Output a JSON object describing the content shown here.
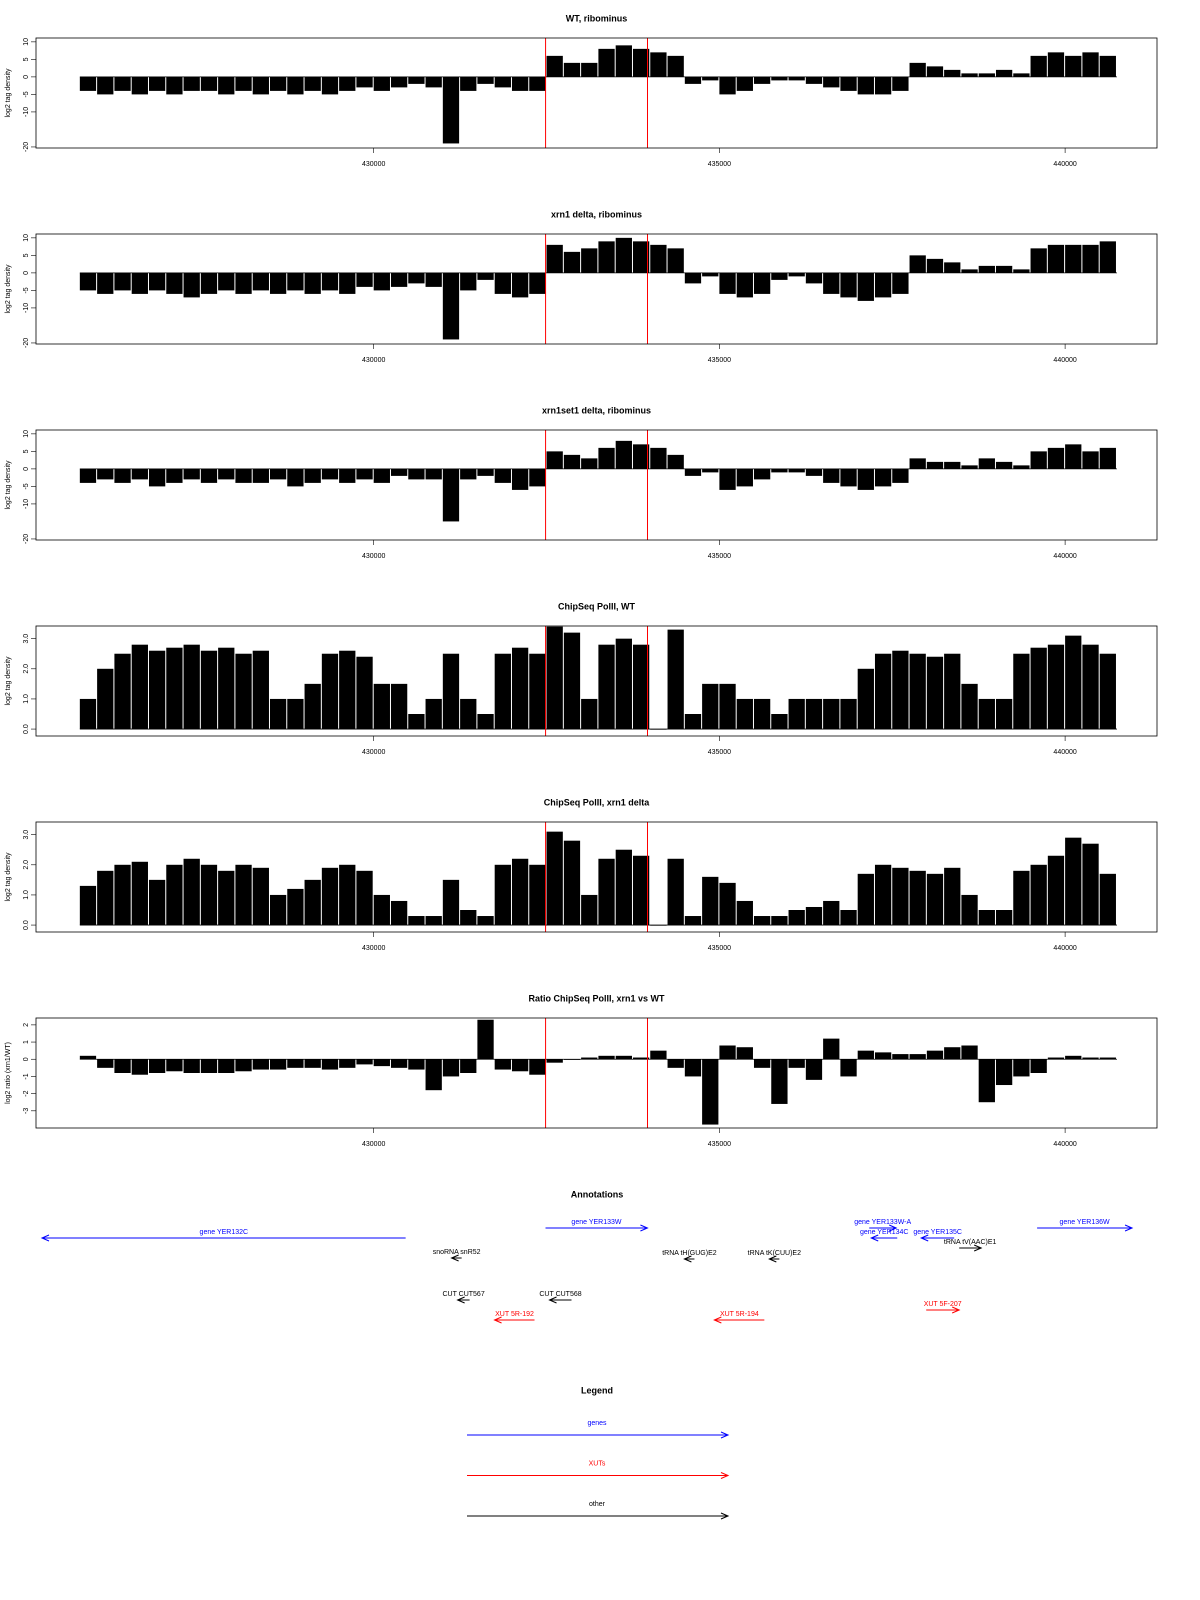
{
  "chart_data": [
    {
      "type": "bar",
      "title": "WT, ribominus",
      "y_label": "log2 tag density",
      "color": "#000000",
      "markers": [
        432486,
        433960
      ],
      "marker_color": "#ff0000",
      "x": [
        425750,
        426000,
        426250,
        426500,
        426750,
        427000,
        427250,
        427500,
        427750,
        428000,
        428250,
        428500,
        428750,
        429000,
        429250,
        429500,
        429750,
        430000,
        430250,
        430500,
        430750,
        431000,
        431250,
        431500,
        431750,
        432000,
        432250,
        432500,
        432750,
        433000,
        433250,
        433500,
        433750,
        434000,
        434250,
        434500,
        434750,
        435000,
        435250,
        435500,
        435750,
        436000,
        436250,
        436500,
        436750,
        437000,
        437250,
        437500,
        437750,
        438000,
        438250,
        438500,
        438750,
        439000,
        439250,
        439500,
        439750,
        440000,
        440250,
        440500
      ],
      "values": [
        -4,
        -5,
        -4,
        -5,
        -4,
        -5,
        -4,
        -4,
        -5,
        -4,
        -5,
        -4,
        -5,
        -4,
        -5,
        -4,
        -3,
        -4,
        -3,
        -2,
        -3,
        -19,
        -4,
        -2,
        -3,
        -4,
        -4,
        6,
        4,
        4,
        8,
        9,
        8,
        7,
        6,
        -2,
        -1,
        -5,
        -4,
        -2,
        -1,
        -1,
        -2,
        -3,
        -4,
        -5,
        -5,
        -4,
        4,
        3,
        2,
        1,
        1,
        2,
        1,
        6,
        7,
        6,
        7,
        6
      ],
      "xlim": [
        425116,
        441329
      ],
      "xticks": [
        430000,
        435000,
        440000
      ],
      "ylim": [
        -20.3,
        11.1
      ],
      "yticks": [
        -20,
        -10,
        -5,
        0,
        5,
        10
      ]
    },
    {
      "type": "bar",
      "title": "xrn1 delta, ribominus",
      "y_label": "log2 tag density",
      "color": "#000000",
      "markers": [
        432486,
        433960
      ],
      "marker_color": "#ff0000",
      "x": [
        425750,
        426000,
        426250,
        426500,
        426750,
        427000,
        427250,
        427500,
        427750,
        428000,
        428250,
        428500,
        428750,
        429000,
        429250,
        429500,
        429750,
        430000,
        430250,
        430500,
        430750,
        431000,
        431250,
        431500,
        431750,
        432000,
        432250,
        432500,
        432750,
        433000,
        433250,
        433500,
        433750,
        434000,
        434250,
        434500,
        434750,
        435000,
        435250,
        435500,
        435750,
        436000,
        436250,
        436500,
        436750,
        437000,
        437250,
        437500,
        437750,
        438000,
        438250,
        438500,
        438750,
        439000,
        439250,
        439500,
        439750,
        440000,
        440250,
        440500
      ],
      "values": [
        -5,
        -6,
        -5,
        -6,
        -5,
        -6,
        -7,
        -6,
        -5,
        -6,
        -5,
        -6,
        -5,
        -6,
        -5,
        -6,
        -4,
        -5,
        -4,
        -3,
        -4,
        -19,
        -5,
        -2,
        -6,
        -7,
        -6,
        8,
        6,
        7,
        9,
        10,
        9,
        8,
        7,
        -3,
        -1,
        -6,
        -7,
        -6,
        -2,
        -1,
        -3,
        -6,
        -7,
        -8,
        -7,
        -6,
        5,
        4,
        3,
        1,
        2,
        2,
        1,
        7,
        8,
        8,
        8,
        9
      ],
      "xlim": [
        425116,
        441329
      ],
      "xticks": [
        430000,
        435000,
        440000
      ],
      "ylim": [
        -20.3,
        11.1
      ],
      "yticks": [
        -20,
        -10,
        -5,
        0,
        5,
        10
      ]
    },
    {
      "type": "bar",
      "title": "xrn1set1 delta, ribominus",
      "y_label": "log2 tag density",
      "color": "#000000",
      "markers": [
        432486,
        433960
      ],
      "marker_color": "#ff0000",
      "x": [
        425750,
        426000,
        426250,
        426500,
        426750,
        427000,
        427250,
        427500,
        427750,
        428000,
        428250,
        428500,
        428750,
        429000,
        429250,
        429500,
        429750,
        430000,
        430250,
        430500,
        430750,
        431000,
        431250,
        431500,
        431750,
        432000,
        432250,
        432500,
        432750,
        433000,
        433250,
        433500,
        433750,
        434000,
        434250,
        434500,
        434750,
        435000,
        435250,
        435500,
        435750,
        436000,
        436250,
        436500,
        436750,
        437000,
        437250,
        437500,
        437750,
        438000,
        438250,
        438500,
        438750,
        439000,
        439250,
        439500,
        439750,
        440000,
        440250,
        440500
      ],
      "values": [
        -4,
        -3,
        -4,
        -3,
        -5,
        -4,
        -3,
        -4,
        -3,
        -4,
        -4,
        -3,
        -5,
        -4,
        -3,
        -4,
        -3,
        -4,
        -2,
        -3,
        -3,
        -15,
        -3,
        -2,
        -4,
        -6,
        -5,
        5,
        4,
        3,
        6,
        8,
        7,
        6,
        4,
        -2,
        -1,
        -6,
        -5,
        -3,
        -1,
        -1,
        -2,
        -4,
        -5,
        -6,
        -5,
        -4,
        3,
        2,
        2,
        1,
        3,
        2,
        1,
        5,
        6,
        7,
        5,
        6
      ],
      "xlim": [
        425116,
        441329
      ],
      "xticks": [
        430000,
        435000,
        440000
      ],
      "ylim": [
        -20.3,
        11.1
      ],
      "yticks": [
        -20,
        -10,
        -5,
        0,
        5,
        10
      ]
    },
    {
      "type": "bar",
      "title": "ChipSeq PolII, WT",
      "y_label": "log2 tag density",
      "color": "#000000",
      "markers": [
        432486,
        433960
      ],
      "marker_color": "#ff0000",
      "x": [
        425750,
        426000,
        426250,
        426500,
        426750,
        427000,
        427250,
        427500,
        427750,
        428000,
        428250,
        428500,
        428750,
        429000,
        429250,
        429500,
        429750,
        430000,
        430250,
        430500,
        430750,
        431000,
        431250,
        431500,
        431750,
        432000,
        432250,
        432500,
        432750,
        433000,
        433250,
        433500,
        433750,
        434000,
        434250,
        434500,
        434750,
        435000,
        435250,
        435500,
        435750,
        436000,
        436250,
        436500,
        436750,
        437000,
        437250,
        437500,
        437750,
        438000,
        438250,
        438500,
        438750,
        439000,
        439250,
        439500,
        439750,
        440000,
        440250,
        440500
      ],
      "values": [
        1.0,
        2.0,
        2.5,
        2.8,
        2.6,
        2.7,
        2.8,
        2.6,
        2.7,
        2.5,
        2.6,
        1.0,
        1.0,
        1.5,
        2.5,
        2.6,
        2.4,
        1.5,
        1.5,
        0.5,
        1.0,
        2.5,
        1.0,
        0.5,
        2.5,
        2.7,
        2.5,
        3.4,
        3.2,
        1.0,
        2.8,
        3.0,
        2.8,
        0,
        3.3,
        0.5,
        1.5,
        1.5,
        1.0,
        1.0,
        0.5,
        1.0,
        1.0,
        1.0,
        1.0,
        2.0,
        2.5,
        2.6,
        2.5,
        2.4,
        2.5,
        1.5,
        1.0,
        1.0,
        2.5,
        2.7,
        2.8,
        3.1,
        2.8,
        2.5
      ],
      "xlim": [
        425116,
        441329
      ],
      "xticks": [
        430000,
        435000,
        440000
      ],
      "ylim": [
        -0.23,
        3.42
      ],
      "yticks": [
        {
          "value": 0,
          "label": "0.0"
        },
        {
          "value": 1,
          "label": "1.0"
        },
        {
          "value": 2,
          "label": "2.0"
        },
        {
          "value": 3,
          "label": "3.0"
        }
      ]
    },
    {
      "type": "bar",
      "title": "ChipSeq PolII, xrn1 delta",
      "y_label": "log2 tag density",
      "color": "#000000",
      "markers": [
        432486,
        433960
      ],
      "marker_color": "#ff0000",
      "x": [
        425750,
        426000,
        426250,
        426500,
        426750,
        427000,
        427250,
        427500,
        427750,
        428000,
        428250,
        428500,
        428750,
        429000,
        429250,
        429500,
        429750,
        430000,
        430250,
        430500,
        430750,
        431000,
        431250,
        431500,
        431750,
        432000,
        432250,
        432500,
        432750,
        433000,
        433250,
        433500,
        433750,
        434000,
        434250,
        434500,
        434750,
        435000,
        435250,
        435500,
        435750,
        436000,
        436250,
        436500,
        436750,
        437000,
        437250,
        437500,
        437750,
        438000,
        438250,
        438500,
        438750,
        439000,
        439250,
        439500,
        439750,
        440000,
        440250,
        440500
      ],
      "values": [
        1.3,
        1.8,
        2.0,
        2.1,
        1.5,
        2.0,
        2.2,
        2.0,
        1.8,
        2.0,
        1.9,
        1.0,
        1.2,
        1.5,
        1.9,
        2.0,
        1.8,
        1.0,
        0.8,
        0.3,
        0.3,
        1.5,
        0.5,
        0.3,
        2.0,
        2.2,
        2.0,
        3.1,
        2.8,
        1.0,
        2.2,
        2.5,
        2.3,
        0,
        2.2,
        0.3,
        1.6,
        1.4,
        0.8,
        0.3,
        0.3,
        0.5,
        0.6,
        0.8,
        0.5,
        1.7,
        2.0,
        1.9,
        1.8,
        1.7,
        1.9,
        1.0,
        0.5,
        0.5,
        1.8,
        2.0,
        2.3,
        2.9,
        2.7,
        1.7
      ],
      "xlim": [
        425116,
        441329
      ],
      "xticks": [
        430000,
        435000,
        440000
      ],
      "ylim": [
        -0.23,
        3.42
      ],
      "yticks": [
        {
          "value": 0,
          "label": "0.0"
        },
        {
          "value": 1,
          "label": "1.0"
        },
        {
          "value": 2,
          "label": "2.0"
        },
        {
          "value": 3,
          "label": "3.0"
        }
      ]
    },
    {
      "type": "bar",
      "title": "Ratio ChipSeq PolII, xrn1 vs WT",
      "y_label": "log2 ratio (xrn1/WT)",
      "color": "#000000",
      "markers": [
        432486,
        433960
      ],
      "marker_color": "#ff0000",
      "x": [
        425750,
        426000,
        426250,
        426500,
        426750,
        427000,
        427250,
        427500,
        427750,
        428000,
        428250,
        428500,
        428750,
        429000,
        429250,
        429500,
        429750,
        430000,
        430250,
        430500,
        430750,
        431000,
        431250,
        431500,
        431750,
        432000,
        432250,
        432500,
        432750,
        433000,
        433250,
        433500,
        433750,
        434000,
        434250,
        434500,
        434750,
        435000,
        435250,
        435500,
        435750,
        436000,
        436250,
        436500,
        436750,
        437000,
        437250,
        437500,
        437750,
        438000,
        438250,
        438500,
        438750,
        439000,
        439250,
        439500,
        439750,
        440000,
        440250,
        440500
      ],
      "values": [
        0.2,
        -0.5,
        -0.8,
        -0.9,
        -0.8,
        -0.7,
        -0.8,
        -0.8,
        -0.8,
        -0.7,
        -0.6,
        -0.6,
        -0.5,
        -0.5,
        -0.6,
        -0.5,
        -0.3,
        -0.4,
        -0.5,
        -0.6,
        -1.8,
        -1.0,
        -0.8,
        2.3,
        -0.6,
        -0.7,
        -0.9,
        -0.2,
        0,
        0.1,
        0.2,
        0.2,
        0.1,
        0.5,
        -0.5,
        -1.0,
        -3.8,
        0.8,
        0.7,
        -0.5,
        -2.6,
        -0.5,
        -1.2,
        1.2,
        -1.0,
        0.5,
        0.4,
        0.3,
        0.3,
        0.5,
        0.7,
        0.8,
        -2.5,
        -1.5,
        -1.0,
        -0.8,
        0.1,
        0.2,
        0.1,
        0.1
      ],
      "xlim": [
        425116,
        441329
      ],
      "xticks": [
        430000,
        435000,
        440000
      ],
      "ylim": [
        -4,
        2.4
      ],
      "yticks": [
        -3,
        -2,
        -1,
        0,
        1,
        2
      ]
    }
  ],
  "annotations": {
    "title": "Annotations",
    "items": [
      {
        "label": "gene YER132C",
        "color": "#0000ff",
        "start": 430462,
        "end": 425203
      },
      {
        "label": "gene YER133W",
        "color": "#0000ff",
        "start": 432485,
        "end": 433959
      },
      {
        "label": "gene YER133W-A",
        "color": "#0000ff",
        "start": 437167,
        "end": 437557
      },
      {
        "label": "gene YER134C",
        "color": "#0000ff",
        "start": 437572,
        "end": 437196
      },
      {
        "label": "gene YER135C",
        "color": "#0000ff",
        "start": 438395,
        "end": 437919
      },
      {
        "label": "gene YER136W",
        "color": "#0000ff",
        "start": 439595,
        "end": 440968
      },
      {
        "label": "snoRNA snR52",
        "color": "#000000",
        "start": 431272,
        "end": 431127
      },
      {
        "label": "tRNA tH(GUG)E2",
        "color": "#000000",
        "start": 434639,
        "end": 434494
      },
      {
        "label": "tRNA tK(CUU)E2",
        "color": "#000000",
        "start": 435867,
        "end": 435722
      },
      {
        "label": "tRNA tV(AAC)E1",
        "color": "#000000",
        "start": 438468,
        "end": 438786
      },
      {
        "label": "CUT CUT567",
        "color": "#000000",
        "start": 431387,
        "end": 431214
      },
      {
        "label": "CUT CUT568",
        "color": "#000000",
        "start": 432861,
        "end": 432543
      },
      {
        "label": "XUT 5R-192",
        "color": "#ff0000",
        "start": 432326,
        "end": 431748
      },
      {
        "label": "XUT 5R-194",
        "color": "#ff0000",
        "start": 435650,
        "end": 434927
      },
      {
        "label": "XUT 5F-207",
        "color": "#ff0000",
        "start": 437991,
        "end": 438468
      }
    ]
  },
  "legend": {
    "title": "Legend",
    "items": [
      {
        "label": "genes",
        "color": "#0000ff"
      },
      {
        "label": "XUTs",
        "color": "#ff0000"
      },
      {
        "label": "other",
        "color": "#000000"
      }
    ]
  }
}
